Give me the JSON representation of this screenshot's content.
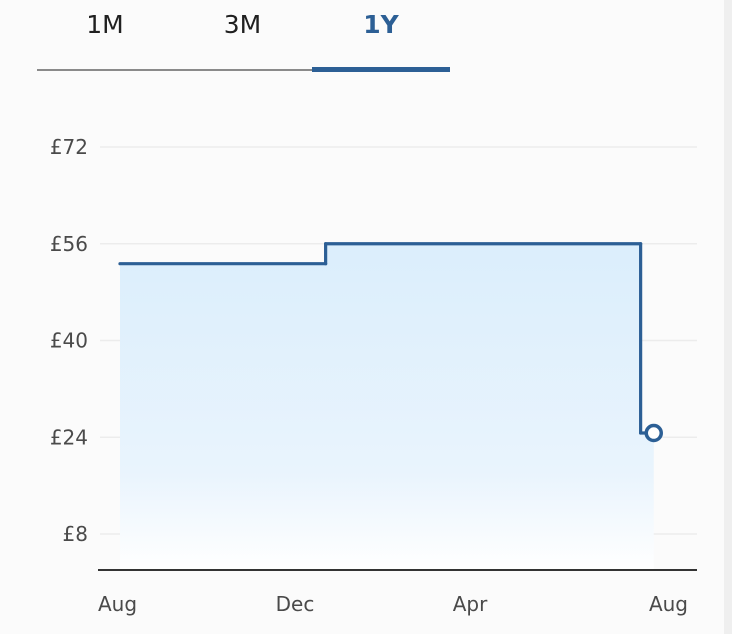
{
  "tabs": [
    {
      "label": "1M",
      "active": false
    },
    {
      "label": "3M",
      "active": false
    },
    {
      "label": "1Y",
      "active": true
    }
  ],
  "colors": {
    "accent": "#2c5f95",
    "fill_top": "#dbeefc",
    "fill_bottom": "#ffffff",
    "grid": "#ececec",
    "axis": "#333333"
  },
  "chart_data": {
    "type": "line",
    "step": true,
    "ylim": [
      0,
      72
    ],
    "yticks": [
      8,
      24,
      40,
      56,
      72
    ],
    "ytick_labels": [
      "£8",
      "£24",
      "£40",
      "£56",
      "£72"
    ],
    "xticks": [
      0,
      4,
      8,
      12
    ],
    "xtick_labels": [
      "Aug",
      "Dec",
      "Apr",
      "Aug"
    ],
    "xlim": [
      0,
      12
    ],
    "grid": true,
    "series": [
      {
        "x": [
          0,
          4.7,
          4.7,
          11.9,
          11.9,
          12.2
        ],
        "values": [
          52.7,
          52.7,
          56,
          56,
          24.7,
          24.7
        ]
      }
    ],
    "end_point": {
      "x": 12.2,
      "value": 24.7
    }
  }
}
